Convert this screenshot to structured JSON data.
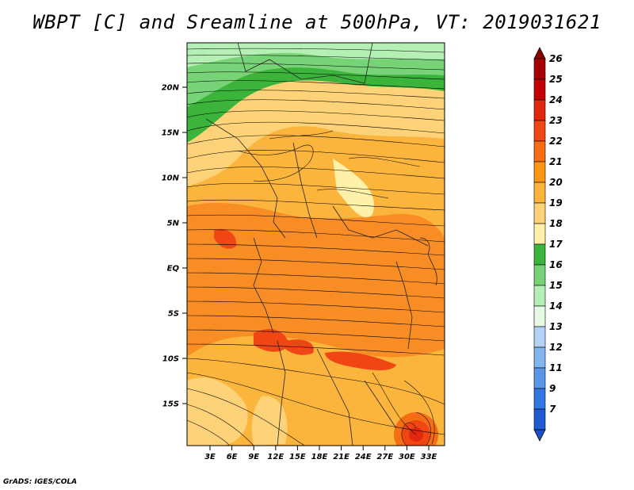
{
  "title": "WBPT [C] and Sreamline at 500hPa, VT: 2019031621",
  "credit": "GrADS: IGES/COLA",
  "lat_labels": [
    "20N",
    "15N",
    "10N",
    "5N",
    "EQ",
    "5S",
    "10S",
    "15S"
  ],
  "lon_labels": [
    "3E",
    "6E",
    "9E",
    "12E",
    "15E",
    "18E",
    "21E",
    "24E",
    "27E",
    "30E",
    "33E"
  ],
  "colorbar": {
    "levels": [
      {
        "label": "26",
        "color": "#a50000"
      },
      {
        "label": "25",
        "color": "#c30000"
      },
      {
        "label": "24",
        "color": "#e1280f"
      },
      {
        "label": "23",
        "color": "#f04614"
      },
      {
        "label": "22",
        "color": "#f56e14"
      },
      {
        "label": "21",
        "color": "#fa9614"
      },
      {
        "label": "20",
        "color": "#fbb43c"
      },
      {
        "label": "19",
        "color": "#fdd278"
      },
      {
        "label": "18",
        "color": "#fff0aa"
      },
      {
        "label": "17",
        "color": "#3cb43c"
      },
      {
        "label": "16",
        "color": "#78d278"
      },
      {
        "label": "15",
        "color": "#b4f0b4"
      },
      {
        "label": "14",
        "color": "#e6fae6"
      },
      {
        "label": "13",
        "color": "#b4d2f5"
      },
      {
        "label": "12",
        "color": "#82b4f0"
      },
      {
        "label": "11",
        "color": "#5a96e6"
      },
      {
        "label": "9",
        "color": "#3278e1"
      },
      {
        "label": "7",
        "color": "#1e5ad2"
      }
    ],
    "top_color": "#8c0000",
    "bottom_color": "#1e4bc8"
  },
  "map": {
    "lat_range": [
      -20,
      25
    ],
    "lon_range": [
      0,
      35
    ],
    "field": "WBPT",
    "overlay": "streamlines",
    "level": "500hPa"
  }
}
